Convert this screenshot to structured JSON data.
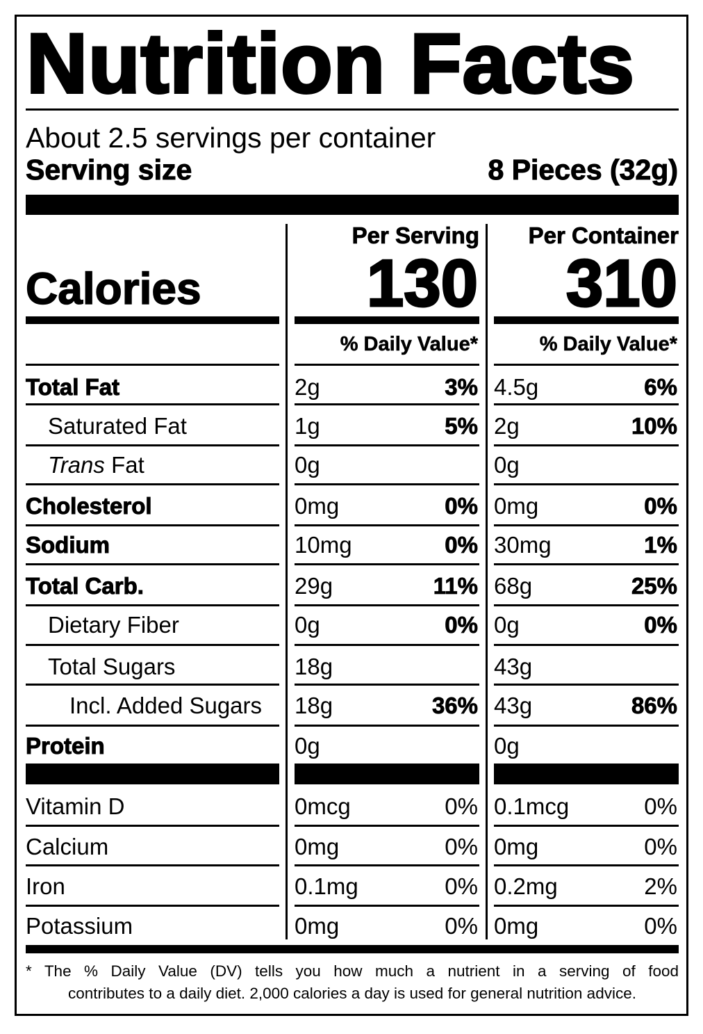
{
  "title": "Nutrition Facts",
  "servings_per_container": "About 2.5 servings per container",
  "serving_size_label": "Serving size",
  "serving_size_value": "8 Pieces (32g)",
  "columns": {
    "serving_label": "Per Serving",
    "container_label": "Per Container"
  },
  "calories": {
    "label": "Calories",
    "per_serving": "130",
    "per_container": "310"
  },
  "dv_header": "% Daily Value*",
  "nutrients": [
    {
      "name": "Total Fat",
      "style": "bold",
      "serving_amount": "2g",
      "serving_dv": "3%",
      "container_amount": "4.5g",
      "container_dv": "6%"
    },
    {
      "name": "Saturated Fat",
      "style": "indent1",
      "serving_amount": "1g",
      "serving_dv": "5%",
      "container_amount": "2g",
      "container_dv": "10%"
    },
    {
      "name_italic": "Trans",
      "name_rest": " Fat",
      "style": "indent1",
      "serving_amount": "0g",
      "serving_dv": "",
      "container_amount": "0g",
      "container_dv": ""
    },
    {
      "name": "Cholesterol",
      "style": "bold",
      "serving_amount": "0mg",
      "serving_dv": "0%",
      "container_amount": "0mg",
      "container_dv": "0%"
    },
    {
      "name": "Sodium",
      "style": "bold",
      "serving_amount": "10mg",
      "serving_dv": "0%",
      "container_amount": "30mg",
      "container_dv": "1%"
    },
    {
      "name": "Total Carb.",
      "style": "bold",
      "serving_amount": "29g",
      "serving_dv": "11%",
      "container_amount": "68g",
      "container_dv": "25%"
    },
    {
      "name": "Dietary Fiber",
      "style": "indent1",
      "serving_amount": "0g",
      "serving_dv": "0%",
      "container_amount": "0g",
      "container_dv": "0%"
    },
    {
      "name": "Total Sugars",
      "style": "indent1",
      "serving_amount": "18g",
      "serving_dv": "",
      "container_amount": "43g",
      "container_dv": ""
    },
    {
      "name": "Incl. Added Sugars",
      "style": "indent2",
      "serving_amount": "18g",
      "serving_dv": "36%",
      "container_amount": "43g",
      "container_dv": "86%"
    },
    {
      "name": "Protein",
      "style": "bold",
      "serving_amount": "0g",
      "serving_dv": "",
      "container_amount": "0g",
      "container_dv": ""
    }
  ],
  "vitamins": [
    {
      "name": "Vitamin D",
      "serving_amount": "0mcg",
      "serving_dv": "0%",
      "container_amount": "0.1mcg",
      "container_dv": "0%"
    },
    {
      "name": "Calcium",
      "serving_amount": "0mg",
      "serving_dv": "0%",
      "container_amount": "0mg",
      "container_dv": "0%"
    },
    {
      "name": "Iron",
      "serving_amount": "0.1mg",
      "serving_dv": "0%",
      "container_amount": "0.2mg",
      "container_dv": "2%"
    },
    {
      "name": "Potassium",
      "serving_amount": "0mg",
      "serving_dv": "0%",
      "container_amount": "0mg",
      "container_dv": "0%"
    }
  ],
  "footnote": {
    "line1": "* The % Daily Value (DV) tells you how much a nutrient in a serving of food",
    "line2": "contributes to a daily diet. 2,000 calories a day is used for general nutrition advice."
  }
}
